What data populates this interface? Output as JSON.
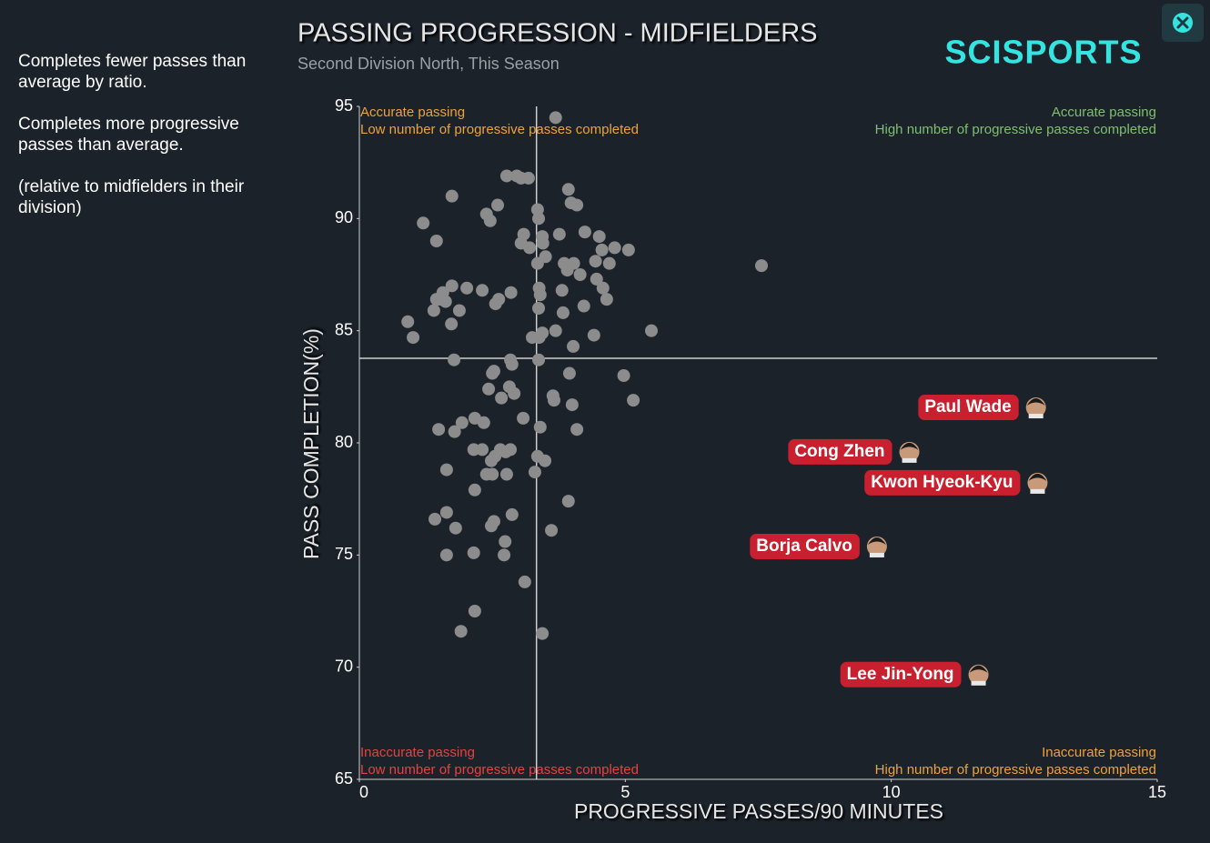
{
  "notes": [
    "Completes fewer passes than average by ratio.",
    "Completes more progressive passes than average.",
    "(relative to midfielders in their division)"
  ],
  "logo": "SCISPORTS",
  "chart_data": {
    "type": "scatter",
    "title": "PASSING PROGRESSION - MIDFIELDERS",
    "subtitle": "Second Division North, This Season",
    "x_label": "PROGRESSIVE PASSES/90 MINUTES",
    "y_label": "PASS COMPLETION(%)",
    "xlim": [
      0,
      15
    ],
    "xticks": [
      0,
      5,
      10,
      15
    ],
    "ylim": [
      65,
      95
    ],
    "yticks": [
      65,
      70,
      75,
      80,
      85,
      90,
      95
    ],
    "grid": false,
    "color": "#8c8c8c",
    "mean_x": 3.33,
    "mean_y": 83.77,
    "x": [
      3.69,
      1.74,
      2.77,
      2.96,
      3.04,
      3.18,
      3.93,
      2.6,
      3.98,
      4.09,
      3.35,
      2.39,
      2.46,
      1.2,
      3.37,
      3.09,
      3.76,
      4.24,
      4.51,
      3.44,
      4.56,
      4.8,
      5.06,
      1.45,
      3.04,
      3.2,
      3.45,
      3.35,
      3.85,
      4.03,
      4.44,
      3.91,
      4.7,
      3.5,
      4.15,
      7.56,
      4.46,
      4.58,
      4.65,
      3.81,
      3.38,
      3.4,
      1.57,
      1.74,
      2.02,
      2.31,
      2.85,
      1.45,
      1.52,
      1.62,
      1.4,
      1.88,
      2.62,
      2.56,
      3.37,
      3.83,
      4.22,
      0.91,
      1.73,
      1.01,
      3.25,
      3.44,
      3.38,
      3.69,
      4.41,
      5.49,
      4.02,
      1.78,
      2.84,
      2.87,
      3.37,
      2.53,
      2.5,
      3.95,
      4.97,
      2.82,
      2.43,
      2.91,
      2.67,
      3.64,
      3.66,
      4.0,
      5.15,
      3.08,
      1.49,
      1.79,
      1.93,
      2.17,
      2.34,
      3.4,
      4.09,
      2.15,
      2.31,
      2.65,
      2.84,
      2.75,
      2.55,
      2.48,
      3.35,
      3.49,
      1.64,
      2.39,
      2.5,
      2.77,
      3.3,
      2.17,
      3.93,
      1.64,
      1.42,
      2.53,
      2.87,
      1.81,
      2.48,
      3.61,
      2.74,
      1.64,
      2.15,
      2.72,
      3.11,
      2.17,
      1.91,
      3.44
    ],
    "values": [
      94.5,
      91.0,
      91.9,
      91.9,
      91.8,
      91.8,
      91.3,
      90.6,
      90.7,
      90.6,
      90.4,
      90.2,
      89.9,
      89.8,
      90.0,
      89.3,
      89.3,
      89.4,
      89.2,
      89.2,
      88.6,
      88.7,
      88.6,
      89.0,
      88.9,
      88.7,
      88.9,
      88.0,
      88.0,
      88.0,
      88.1,
      87.7,
      88.0,
      88.3,
      87.5,
      87.9,
      87.3,
      86.9,
      86.4,
      86.8,
      86.9,
      86.6,
      86.7,
      87.0,
      86.9,
      86.8,
      86.7,
      86.4,
      86.4,
      86.3,
      85.9,
      85.9,
      86.4,
      86.2,
      86.0,
      85.8,
      86.1,
      85.4,
      85.3,
      84.7,
      84.7,
      84.9,
      84.7,
      85.0,
      84.8,
      85.0,
      84.3,
      83.7,
      83.7,
      83.5,
      83.7,
      83.2,
      83.1,
      83.1,
      83.0,
      82.5,
      82.4,
      82.2,
      82.0,
      82.1,
      81.9,
      81.7,
      81.9,
      81.1,
      80.6,
      80.5,
      80.9,
      81.1,
      80.9,
      80.7,
      80.6,
      79.7,
      79.7,
      79.7,
      79.7,
      79.6,
      79.4,
      79.2,
      79.4,
      79.2,
      78.8,
      78.6,
      78.6,
      78.6,
      78.7,
      77.9,
      77.4,
      76.9,
      76.6,
      76.5,
      76.8,
      76.2,
      76.3,
      76.1,
      75.6,
      75.0,
      75.1,
      75.0,
      73.8,
      72.5,
      71.6,
      71.5
    ],
    "highlight_color": "#c8202e",
    "highlighted": [
      {
        "name": "Paul Wade",
        "x": 12.72,
        "y": 81.58
      },
      {
        "name": "Cong Zhen",
        "x": 10.34,
        "y": 79.6
      },
      {
        "name": "Kwon Hyeok-Kyu",
        "x": 12.75,
        "y": 78.22
      },
      {
        "name": "Borja Calvo",
        "x": 9.73,
        "y": 75.38
      },
      {
        "name": "Lee Jin-Yong",
        "x": 11.64,
        "y": 69.67
      }
    ],
    "quadrant_labels": [
      {
        "corner": "top-left",
        "color": "#f0a23a",
        "lines": [
          "Accurate passing",
          "Low number of progressive passes completed"
        ]
      },
      {
        "corner": "top-right",
        "color": "#7fbf6e",
        "lines": [
          "Accurate passing",
          "High number of progressive passes completed"
        ]
      },
      {
        "corner": "bottom-left",
        "color": "#e5433f",
        "lines": [
          "Inaccurate passing",
          "Low number of progressive passes completed"
        ]
      },
      {
        "corner": "bottom-right",
        "color": "#f0a23a",
        "lines": [
          "Inaccurate passing",
          "High number of progressive passes completed"
        ]
      }
    ]
  }
}
